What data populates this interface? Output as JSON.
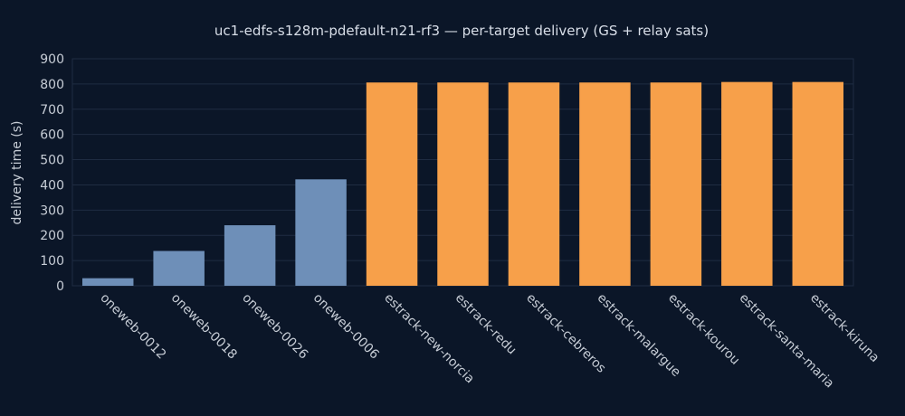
{
  "chart_data": {
    "type": "bar",
    "title": "uc1-edfs-s128m-pdefault-n21-rf3 — per-target delivery (GS + relay sats)",
    "xlabel": "",
    "ylabel": "delivery time (s)",
    "ylim": [
      0,
      900
    ],
    "yticks": [
      0,
      100,
      200,
      300,
      400,
      500,
      600,
      700,
      800,
      900
    ],
    "categories": [
      "oneweb-0012",
      "oneweb-0018",
      "oneweb-0026",
      "oneweb-0006",
      "estrack-new-norcia",
      "estrack-redu",
      "estrack-cebreros",
      "estrack-malargue",
      "estrack-kourou",
      "estrack-santa-maria",
      "estrack-kiruna"
    ],
    "values": [
      30,
      138,
      240,
      422,
      806,
      806,
      806,
      806,
      806,
      808,
      808
    ],
    "kinds": [
      "sat",
      "sat",
      "sat",
      "sat",
      "gs",
      "gs",
      "gs",
      "gs",
      "gs",
      "gs",
      "gs"
    ],
    "grid": true,
    "colors": {
      "sat": "#6e8fb8",
      "gs": "#f7a04a",
      "background": "#0b1628"
    }
  }
}
